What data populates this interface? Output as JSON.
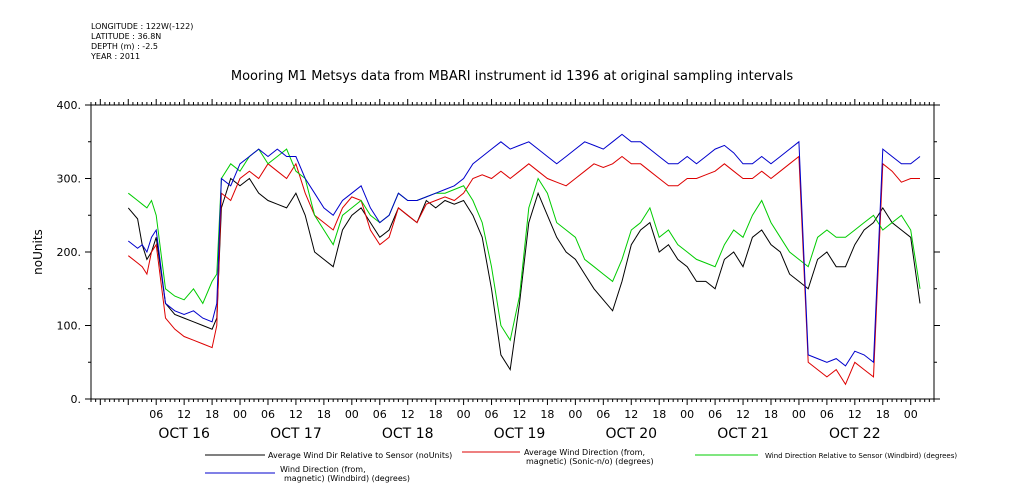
{
  "header": {
    "longitude": "LONGITUDE : 122W(-122)",
    "latitude": "LATITUDE : 36.8N",
    "depth": "DEPTH (m) : -2.5",
    "year": "YEAR : 2011"
  },
  "chart_data": {
    "type": "line",
    "title": "Mooring M1 Metsys data from MBARI instrument id 1396 at original sampling intervals",
    "ylabel": "noUnits",
    "xlabel": "",
    "ylim": [
      0,
      400
    ],
    "yticks": [
      0,
      100,
      200,
      300,
      400
    ],
    "ytick_labels": [
      "0.",
      "100.",
      "200.",
      "300.",
      "400."
    ],
    "xlim_hours": [
      -8,
      173
    ],
    "hour_tick_labels": [
      {
        "h": 6,
        "t": "06"
      },
      {
        "h": 12,
        "t": "12"
      },
      {
        "h": 18,
        "t": "18"
      },
      {
        "h": 24,
        "t": "00"
      },
      {
        "h": 30,
        "t": "06"
      },
      {
        "h": 36,
        "t": "12"
      },
      {
        "h": 42,
        "t": "18"
      },
      {
        "h": 48,
        "t": "00"
      },
      {
        "h": 54,
        "t": "06"
      },
      {
        "h": 60,
        "t": "12"
      },
      {
        "h": 66,
        "t": "18"
      },
      {
        "h": 72,
        "t": "00"
      },
      {
        "h": 78,
        "t": "06"
      },
      {
        "h": 84,
        "t": "12"
      },
      {
        "h": 90,
        "t": "18"
      },
      {
        "h": 96,
        "t": "00"
      },
      {
        "h": 102,
        "t": "06"
      },
      {
        "h": 108,
        "t": "12"
      },
      {
        "h": 114,
        "t": "18"
      },
      {
        "h": 120,
        "t": "00"
      },
      {
        "h": 126,
        "t": "06"
      },
      {
        "h": 132,
        "t": "12"
      },
      {
        "h": 138,
        "t": "18"
      },
      {
        "h": 144,
        "t": "00"
      },
      {
        "h": 150,
        "t": "06"
      },
      {
        "h": 156,
        "t": "12"
      },
      {
        "h": 162,
        "t": "18"
      },
      {
        "h": 168,
        "t": "00"
      }
    ],
    "day_labels": [
      {
        "h": 12,
        "t": "OCT 16"
      },
      {
        "h": 36,
        "t": "OCT 17"
      },
      {
        "h": 60,
        "t": "OCT 18"
      },
      {
        "h": 84,
        "t": "OCT 19"
      },
      {
        "h": 108,
        "t": "OCT 20"
      },
      {
        "h": 132,
        "t": "OCT 21"
      },
      {
        "h": 156,
        "t": "OCT 22"
      }
    ],
    "series": [
      {
        "name": "Average Wind Dir Relative to Sensor (noUnits)",
        "color": "#000000",
        "x": [
          0,
          2,
          3,
          4,
          5,
          6,
          8,
          10,
          12,
          14,
          16,
          18,
          19,
          20,
          22,
          24,
          26,
          28,
          30,
          32,
          34,
          36,
          38,
          40,
          42,
          44,
          46,
          48,
          50,
          52,
          54,
          56,
          58,
          60,
          62,
          64,
          66,
          68,
          70,
          72,
          74,
          76,
          78,
          80,
          82,
          84,
          86,
          88,
          90,
          92,
          94,
          96,
          98,
          100,
          102,
          104,
          106,
          108,
          110,
          112,
          114,
          116,
          118,
          120,
          122,
          124,
          126,
          128,
          130,
          132,
          134,
          136,
          138,
          140,
          142,
          144,
          146,
          148,
          150,
          152,
          154,
          156,
          158,
          160,
          162,
          164,
          166,
          168,
          170
        ],
        "y": [
          260,
          245,
          210,
          190,
          200,
          220,
          130,
          115,
          110,
          105,
          100,
          95,
          110,
          260,
          300,
          290,
          300,
          280,
          270,
          265,
          260,
          280,
          250,
          200,
          190,
          180,
          230,
          250,
          260,
          240,
          220,
          230,
          260,
          250,
          240,
          270,
          260,
          270,
          265,
          270,
          250,
          220,
          150,
          60,
          40,
          130,
          240,
          280,
          250,
          220,
          200,
          190,
          170,
          150,
          135,
          120,
          160,
          210,
          230,
          240,
          200,
          210,
          190,
          180,
          160,
          160,
          150,
          190,
          200,
          180,
          220,
          230,
          210,
          200,
          170,
          160,
          150,
          190,
          200,
          180,
          180,
          210,
          230,
          240,
          260,
          240,
          230,
          220,
          130
        ]
      },
      {
        "name": "Average Wind Direction (from, magnetic) (Sonic-n/o) (degrees)",
        "color": "#dd0000",
        "x": [
          0,
          2,
          3,
          4,
          5,
          6,
          8,
          10,
          12,
          14,
          16,
          18,
          19,
          20,
          22,
          24,
          26,
          28,
          30,
          32,
          34,
          36,
          38,
          40,
          42,
          44,
          46,
          48,
          50,
          52,
          54,
          56,
          58,
          60,
          62,
          64,
          66,
          68,
          70,
          72,
          74,
          76,
          78,
          80,
          82,
          84,
          86,
          88,
          90,
          92,
          94,
          96,
          98,
          100,
          102,
          104,
          106,
          108,
          110,
          112,
          114,
          116,
          118,
          120,
          122,
          124,
          126,
          128,
          130,
          132,
          134,
          136,
          138,
          140,
          142,
          144,
          146,
          148,
          150,
          152,
          154,
          156,
          158,
          160,
          162,
          164,
          166,
          168,
          170
        ],
        "y": [
          195,
          185,
          180,
          170,
          200,
          210,
          110,
          95,
          85,
          80,
          75,
          70,
          100,
          280,
          270,
          300,
          310,
          300,
          320,
          310,
          300,
          320,
          280,
          250,
          240,
          230,
          260,
          275,
          270,
          230,
          210,
          220,
          260,
          250,
          240,
          265,
          270,
          275,
          270,
          280,
          300,
          305,
          300,
          310,
          300,
          310,
          320,
          310,
          300,
          295,
          290,
          300,
          310,
          320,
          315,
          320,
          330,
          320,
          320,
          310,
          300,
          290,
          290,
          300,
          300,
          305,
          310,
          320,
          310,
          300,
          300,
          310,
          300,
          310,
          320,
          330,
          50,
          40,
          30,
          40,
          20,
          50,
          40,
          30,
          320,
          310,
          295,
          300,
          300
        ]
      },
      {
        "name": "Wind Direction Relative to Sensor (Windbird) (degrees)",
        "color": "#00cc00",
        "x": [
          0,
          2,
          3,
          4,
          5,
          6,
          8,
          10,
          12,
          14,
          16,
          18,
          19,
          20,
          22,
          24,
          26,
          28,
          30,
          32,
          34,
          36,
          38,
          40,
          42,
          44,
          46,
          48,
          50,
          52,
          54,
          56,
          58,
          60,
          62,
          64,
          66,
          68,
          70,
          72,
          74,
          76,
          78,
          80,
          82,
          84,
          86,
          88,
          90,
          92,
          94,
          96,
          98,
          100,
          102,
          104,
          106,
          108,
          110,
          112,
          114,
          116,
          118,
          120,
          122,
          124,
          126,
          128,
          130,
          132,
          134,
          136,
          138,
          140,
          142,
          144,
          146,
          148,
          150,
          152,
          154,
          156,
          158,
          160,
          162,
          164,
          166,
          168,
          170
        ],
        "y": [
          280,
          270,
          265,
          260,
          270,
          250,
          150,
          140,
          135,
          150,
          130,
          160,
          170,
          300,
          320,
          310,
          330,
          340,
          320,
          330,
          340,
          310,
          300,
          250,
          230,
          210,
          250,
          260,
          270,
          250,
          240,
          250,
          280,
          270,
          270,
          275,
          280,
          280,
          285,
          290,
          270,
          240,
          180,
          100,
          80,
          140,
          260,
          300,
          280,
          240,
          230,
          220,
          190,
          180,
          170,
          160,
          190,
          230,
          240,
          260,
          220,
          230,
          210,
          200,
          190,
          185,
          180,
          210,
          230,
          220,
          250,
          270,
          240,
          220,
          200,
          190,
          180,
          220,
          230,
          220,
          220,
          230,
          240,
          250,
          230,
          240,
          250,
          230,
          150
        ]
      },
      {
        "name": "Wind Direction (from, magnetic) (Windbird) (degrees)",
        "color": "#0000cc",
        "x": [
          0,
          2,
          3,
          4,
          5,
          6,
          8,
          10,
          12,
          14,
          16,
          18,
          19,
          20,
          22,
          24,
          26,
          28,
          30,
          32,
          34,
          36,
          38,
          40,
          42,
          44,
          46,
          48,
          50,
          52,
          54,
          56,
          58,
          60,
          62,
          64,
          66,
          68,
          70,
          72,
          74,
          76,
          78,
          80,
          82,
          84,
          86,
          88,
          90,
          92,
          94,
          96,
          98,
          100,
          102,
          104,
          106,
          108,
          110,
          112,
          114,
          116,
          118,
          120,
          122,
          124,
          126,
          128,
          130,
          132,
          134,
          136,
          138,
          140,
          142,
          144,
          146,
          148,
          150,
          152,
          154,
          156,
          158,
          160,
          162,
          164,
          166,
          168,
          170
        ],
        "y": [
          215,
          205,
          210,
          200,
          220,
          230,
          130,
          120,
          115,
          120,
          110,
          105,
          130,
          300,
          290,
          320,
          330,
          340,
          330,
          340,
          330,
          330,
          300,
          280,
          260,
          250,
          270,
          280,
          290,
          260,
          240,
          250,
          280,
          270,
          270,
          275,
          280,
          285,
          290,
          300,
          320,
          330,
          340,
          350,
          340,
          345,
          350,
          340,
          330,
          320,
          330,
          340,
          350,
          345,
          340,
          350,
          360,
          350,
          350,
          340,
          330,
          320,
          320,
          330,
          320,
          330,
          340,
          345,
          335,
          320,
          320,
          330,
          320,
          330,
          340,
          350,
          60,
          55,
          50,
          55,
          45,
          65,
          60,
          50,
          340,
          330,
          320,
          320,
          330
        ]
      }
    ],
    "grid": false,
    "legend_position": "bottom"
  }
}
